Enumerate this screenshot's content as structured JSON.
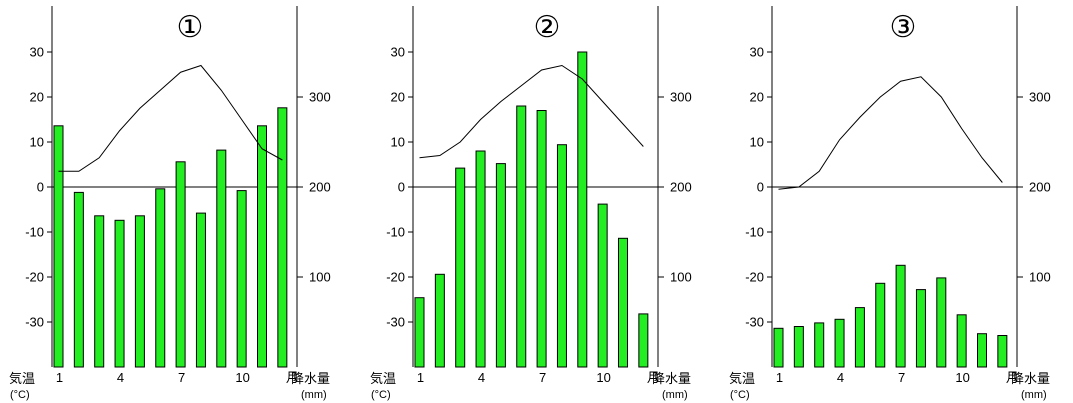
{
  "charts": [
    {
      "title": "①",
      "temp_label": "気温",
      "temp_unit": "(°C)",
      "precip_label": "降水量",
      "precip_unit": "(mm)",
      "x_ticks": [
        "1",
        "4",
        "7",
        "10",
        "月"
      ],
      "temp_ticks": [
        "30",
        "20",
        "10",
        "0",
        "-10",
        "-20",
        "-30"
      ],
      "precip_ticks": [
        "300",
        "200",
        "100"
      ]
    },
    {
      "title": "②",
      "temp_label": "気温",
      "temp_unit": "(°C)",
      "precip_label": "降水量",
      "precip_unit": "(mm)",
      "x_ticks": [
        "1",
        "4",
        "7",
        "10",
        "月"
      ],
      "temp_ticks": [
        "30",
        "20",
        "10",
        "0",
        "-10",
        "-20",
        "-30"
      ],
      "precip_ticks": [
        "300",
        "200",
        "100"
      ]
    },
    {
      "title": "③",
      "temp_label": "気温",
      "temp_unit": "(°C)",
      "precip_label": "降水量",
      "precip_unit": "(mm)",
      "x_ticks": [
        "1",
        "4",
        "7",
        "10",
        "月"
      ],
      "temp_ticks": [
        "30",
        "20",
        "10",
        "0",
        "-10",
        "-20",
        "-30"
      ],
      "precip_ticks": [
        "300",
        "200",
        "100"
      ]
    }
  ],
  "chart_data": [
    {
      "type": "bar+line",
      "title": "①",
      "months": [
        1,
        2,
        3,
        4,
        5,
        6,
        7,
        8,
        9,
        10,
        11,
        12
      ],
      "precipitation_mm": [
        268,
        194,
        168,
        163,
        168,
        198,
        228,
        171,
        241,
        196,
        268,
        288
      ],
      "temperature_c": [
        3.5,
        3.5,
        6.5,
        12.5,
        17.5,
        21.5,
        25.5,
        27,
        21.5,
        15,
        8.5,
        6
      ],
      "temperature_label_col": 1,
      "temp_ylim": [
        -40,
        40
      ],
      "precip_ylim": [
        0,
        400
      ],
      "bar_color": "#22ee22",
      "line_color": "#000000"
    },
    {
      "type": "bar+line",
      "title": "②",
      "months": [
        1,
        2,
        3,
        4,
        5,
        6,
        7,
        8,
        9,
        10,
        11,
        12
      ],
      "precipitation_mm": [
        77,
        103,
        221,
        240,
        226,
        290,
        285,
        247,
        350,
        181,
        143,
        59
      ],
      "temperature_c": [
        6.5,
        7,
        10,
        15,
        19,
        22.5,
        26,
        27,
        24,
        19,
        14,
        9
      ],
      "temp_ylim": [
        -40,
        40
      ],
      "precip_ylim": [
        0,
        400
      ],
      "bar_color": "#22ee22",
      "line_color": "#000000"
    },
    {
      "type": "bar+line",
      "title": "③",
      "months": [
        1,
        2,
        3,
        4,
        5,
        6,
        7,
        8,
        9,
        10,
        11,
        12
      ],
      "precipitation_mm": [
        43,
        45,
        49,
        53,
        66,
        93,
        113,
        86,
        99,
        58,
        37,
        35
      ],
      "temperature_c": [
        -0.5,
        0,
        3.5,
        10.5,
        15.5,
        20,
        23.5,
        24.5,
        20,
        13,
        6.5,
        1
      ],
      "temp_ylim": [
        -40,
        40
      ],
      "precip_ylim": [
        0,
        400
      ],
      "bar_color": "#22ee22",
      "line_color": "#000000"
    }
  ]
}
